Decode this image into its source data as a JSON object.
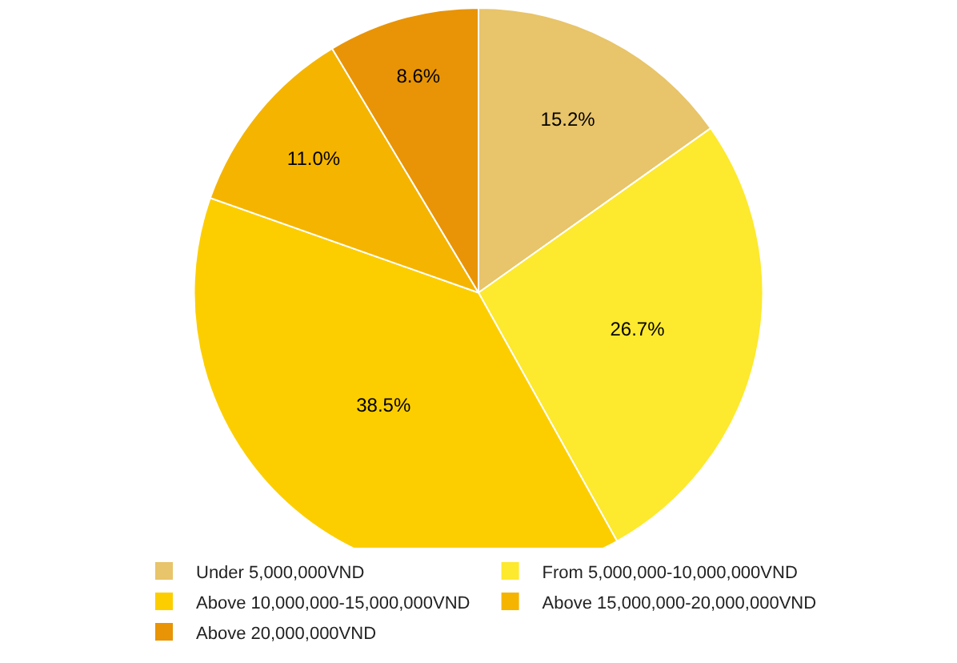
{
  "chart_data": {
    "type": "pie",
    "categories": [
      "Under 5,000,000VND",
      "From 5,000,000-10,000,000VND",
      "Above 10,000,000-15,000,000VND",
      "Above 15,000,000-20,000,000VND",
      "Above 20,000,000VND"
    ],
    "values": [
      15.2,
      26.7,
      38.5,
      11.0,
      8.6
    ],
    "value_labels": [
      "15.2%",
      "26.7%",
      "38.5%",
      "11.0%",
      "8.6%"
    ],
    "colors": [
      "#e8c46a",
      "#fde92e",
      "#fcce00",
      "#f5b400",
      "#e89406"
    ],
    "legend": "bottom"
  }
}
